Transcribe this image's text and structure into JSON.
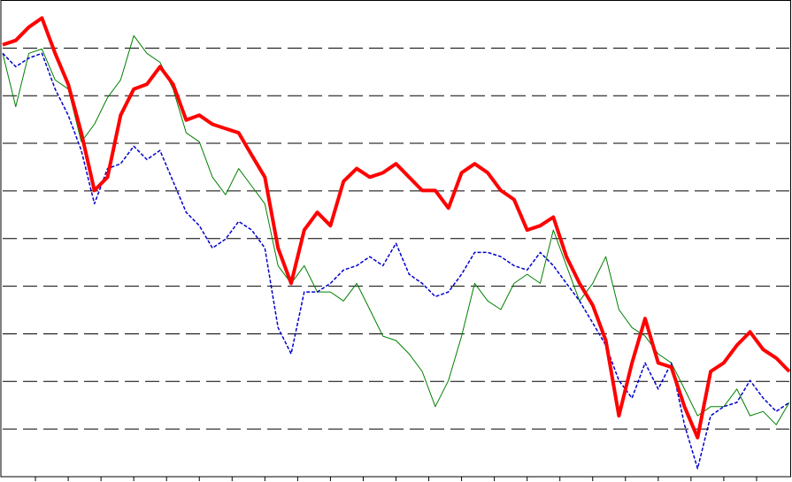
{
  "chart_data": {
    "type": "line",
    "x": [
      0,
      0.4,
      0.8,
      1.2,
      1.6,
      2,
      2.4,
      2.8,
      3.2,
      3.6,
      4,
      4.4,
      4.8,
      5.2,
      5.6,
      6,
      6.4,
      6.8,
      7.2,
      7.6,
      8,
      8.4,
      8.8,
      9.2,
      9.6,
      10,
      10.4,
      10.8,
      11.2,
      11.6,
      12,
      12.4,
      12.8,
      13.2,
      13.6,
      14,
      14.4,
      14.8,
      15.2,
      15.6,
      16,
      16.4,
      16.8,
      17.2,
      17.6,
      18,
      18.4,
      18.8,
      19.2,
      19.6,
      20,
      20.4,
      20.8,
      21.2,
      21.6,
      22,
      22.4,
      22.8,
      23.2,
      23.6,
      24
    ],
    "series": [
      {
        "color": "#008000",
        "width": 1,
        "dash": false,
        "values": [
          8.89,
          7.77,
          8.89,
          8.98,
          8.33,
          8.14,
          7.03,
          7.4,
          7.96,
          8.33,
          9.26,
          8.89,
          8.7,
          8.14,
          7.22,
          7.03,
          6.29,
          5.92,
          6.47,
          6.1,
          5.73,
          4.43,
          4.06,
          4.43,
          3.88,
          3.88,
          3.69,
          4.06,
          3.51,
          2.95,
          2.86,
          2.58,
          2.21,
          1.47,
          2.02,
          2.95,
          4.06,
          3.69,
          3.51,
          4.06,
          4.25,
          4.06,
          5.18,
          4.43,
          3.69,
          4.06,
          4.62,
          3.51,
          3.13,
          2.95,
          2.58,
          2.39,
          1.84,
          1.28,
          1.47,
          1.47,
          1.84,
          1.28,
          1.37,
          1.09,
          1.56
        ]
      },
      {
        "color": "#0000cc",
        "width": 1.5,
        "dash": true,
        "values": [
          8.89,
          8.61,
          8.79,
          8.89,
          8.14,
          7.59,
          6.85,
          5.73,
          6.47,
          6.57,
          6.94,
          6.66,
          6.85,
          6.2,
          5.55,
          5.27,
          4.8,
          4.99,
          5.36,
          5.18,
          4.8,
          3.13,
          2.58,
          3.88,
          3.88,
          4.06,
          4.34,
          4.43,
          4.62,
          4.43,
          4.9,
          4.25,
          4.06,
          3.78,
          3.88,
          4.25,
          4.71,
          4.71,
          4.62,
          4.43,
          4.34,
          4.71,
          4.43,
          4.06,
          3.69,
          3.23,
          2.76,
          2.02,
          1.65,
          2.39,
          1.84,
          2.39,
          1.09,
          0.17,
          1.28,
          1.47,
          1.56,
          2.02,
          1.65,
          1.37,
          1.56
        ]
      },
      {
        "color": "#ff0000",
        "width": 4,
        "dash": false,
        "values": [
          9.07,
          9.16,
          9.44,
          9.63,
          8.89,
          8.24,
          7.22,
          6.01,
          6.29,
          7.59,
          8.14,
          8.24,
          8.61,
          8.24,
          7.49,
          7.59,
          7.4,
          7.31,
          7.22,
          6.75,
          6.29,
          4.8,
          4.06,
          5.18,
          5.55,
          5.27,
          6.2,
          6.47,
          6.29,
          6.38,
          6.57,
          6.29,
          6.01,
          6.01,
          5.64,
          6.38,
          6.57,
          6.38,
          6.01,
          5.82,
          5.18,
          5.27,
          5.45,
          4.62,
          4.06,
          3.6,
          2.86,
          1.28,
          2.39,
          3.32,
          2.39,
          2.3,
          1.47,
          0.82,
          2.21,
          2.39,
          2.76,
          3.04,
          2.67,
          2.49,
          2.21
        ]
      }
    ],
    "xlim": [
      0,
      24
    ],
    "xticks": [
      1,
      2,
      3,
      4,
      5,
      6,
      7,
      8,
      9,
      10,
      11,
      12,
      13,
      14,
      15,
      16,
      17,
      18,
      19,
      20,
      21,
      22,
      23
    ],
    "ylim": [
      0,
      10
    ],
    "yticks": [
      1,
      2,
      3,
      4,
      5,
      6,
      7,
      8,
      9
    ],
    "grid": true
  }
}
